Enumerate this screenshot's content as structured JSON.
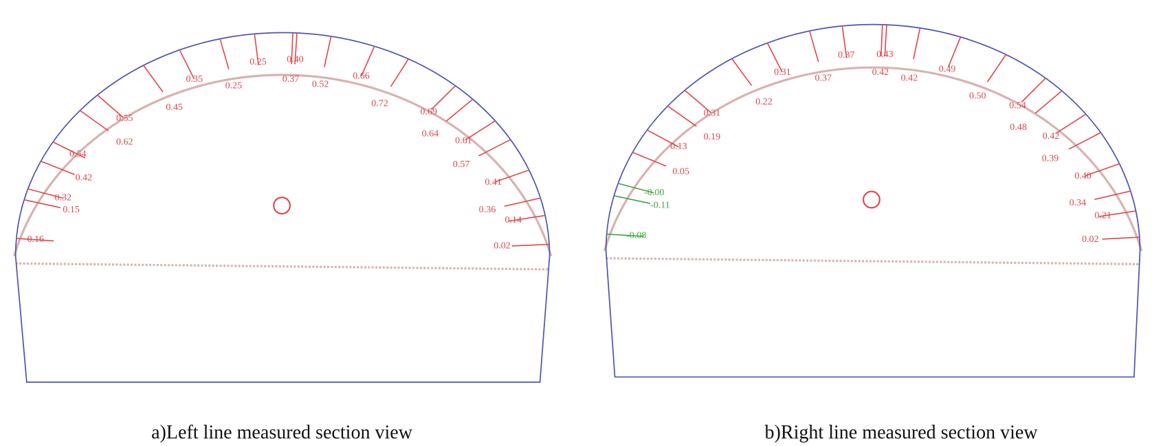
{
  "panels": [
    {
      "caption": "a)Left line measured section view",
      "labels": [
        {
          "text": "0.16",
          "color": "#e0474c"
        },
        {
          "text": "0.15",
          "color": "#e0474c"
        },
        {
          "text": "0.32",
          "color": "#e0474c"
        },
        {
          "text": "0.42",
          "color": "#e0474c"
        },
        {
          "text": "0.54",
          "color": "#e0474c"
        },
        {
          "text": "0.62",
          "color": "#e0474c"
        },
        {
          "text": "0.55",
          "color": "#e0474c"
        },
        {
          "text": "0.45",
          "color": "#e0474c"
        },
        {
          "text": "0.35",
          "color": "#e0474c"
        },
        {
          "text": "0.25",
          "color": "#e0474c"
        },
        {
          "text": "0.25",
          "color": "#e0474c"
        },
        {
          "text": "0.40",
          "color": "#e0474c"
        },
        {
          "text": "0.37",
          "color": "#e0474c"
        },
        {
          "text": "0.52",
          "color": "#e0474c"
        },
        {
          "text": "0.66",
          "color": "#e0474c"
        },
        {
          "text": "0.72",
          "color": "#e0474c"
        },
        {
          "text": "0.69",
          "color": "#e0474c"
        },
        {
          "text": "0.64",
          "color": "#e0474c"
        },
        {
          "text": "0.61",
          "color": "#e0474c"
        },
        {
          "text": "0.57",
          "color": "#e0474c"
        },
        {
          "text": "0.41",
          "color": "#e0474c"
        },
        {
          "text": "0.36",
          "color": "#e0474c"
        },
        {
          "text": "0.14",
          "color": "#e0474c"
        },
        {
          "text": "0.02",
          "color": "#e0474c"
        }
      ]
    },
    {
      "caption": "b)Right line measured section view",
      "labels": [
        {
          "text": "-0.08",
          "color": "#3fa640"
        },
        {
          "text": "-0.11",
          "color": "#3fa640"
        },
        {
          "text": "-0.00",
          "color": "#3fa640"
        },
        {
          "text": "0.05",
          "color": "#e0474c"
        },
        {
          "text": "0.13",
          "color": "#e0474c"
        },
        {
          "text": "0.19",
          "color": "#e0474c"
        },
        {
          "text": "0.31",
          "color": "#e0474c"
        },
        {
          "text": "0.22",
          "color": "#e0474c"
        },
        {
          "text": "0.31",
          "color": "#e0474c"
        },
        {
          "text": "0.37",
          "color": "#e0474c"
        },
        {
          "text": "0.37",
          "color": "#e0474c"
        },
        {
          "text": "0.43",
          "color": "#e0474c"
        },
        {
          "text": "0.42",
          "color": "#e0474c"
        },
        {
          "text": "0.42",
          "color": "#e0474c"
        },
        {
          "text": "0.49",
          "color": "#e0474c"
        },
        {
          "text": "0.50",
          "color": "#e0474c"
        },
        {
          "text": "0.54",
          "color": "#e0474c"
        },
        {
          "text": "0.48",
          "color": "#e0474c"
        },
        {
          "text": "0.42",
          "color": "#e0474c"
        },
        {
          "text": "0.39",
          "color": "#e0474c"
        },
        {
          "text": "0.40",
          "color": "#e0474c"
        },
        {
          "text": "0.34",
          "color": "#e0474c"
        },
        {
          "text": "0.21",
          "color": "#e0474c"
        },
        {
          "text": "0.02",
          "color": "#e0474c"
        }
      ]
    }
  ]
}
